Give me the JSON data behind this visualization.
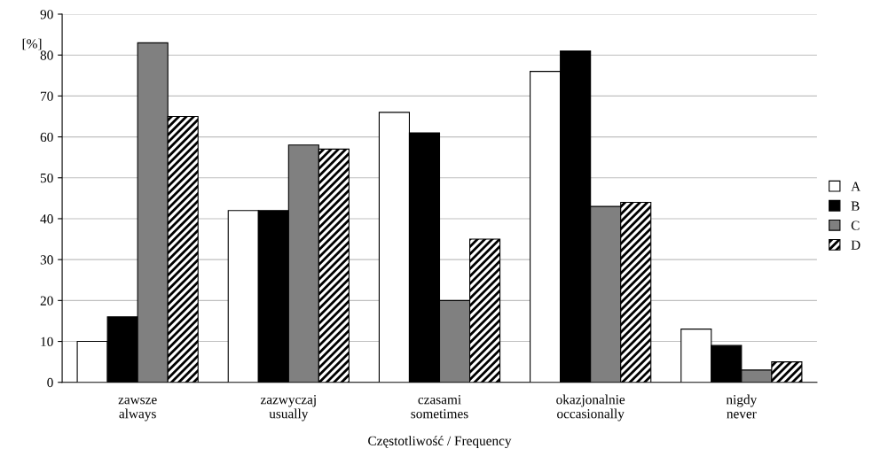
{
  "chart_data": {
    "type": "bar",
    "xlabel": "Częstotliwość / Frequency",
    "ylabel": "[%]",
    "categories": [
      "zawsze\nalways",
      "zazwyczaj\nusually",
      "czasami\nsometimes",
      "okazjonalnie\noccasionally",
      "nigdy\nnever"
    ],
    "series": [
      {
        "name": "A",
        "color": "#ffffff",
        "values": [
          10,
          42,
          66,
          76,
          13
        ]
      },
      {
        "name": "B",
        "color": "#000000",
        "values": [
          16,
          42,
          61,
          81,
          9
        ]
      },
      {
        "name": "C",
        "color": "#808080",
        "values": [
          83,
          58,
          20,
          43,
          3
        ]
      },
      {
        "name": "D",
        "color": "#000000",
        "values": [
          65,
          57,
          35,
          44,
          5
        ]
      }
    ],
    "ylim": [
      0,
      90
    ],
    "yticks": [
      0,
      10,
      20,
      30,
      40,
      50,
      60,
      70,
      80,
      90
    ],
    "grid": "y",
    "legend": "right"
  }
}
